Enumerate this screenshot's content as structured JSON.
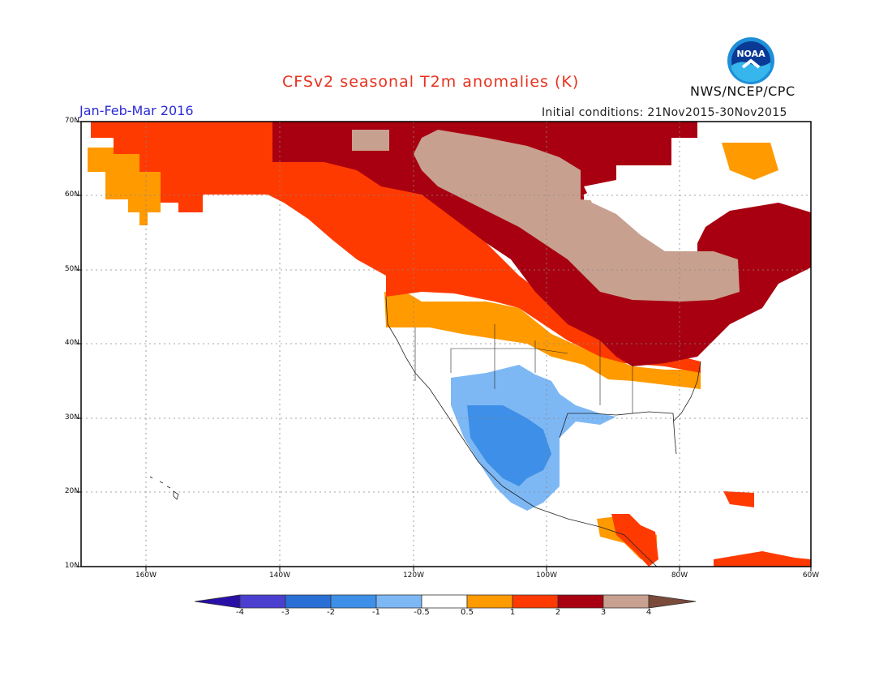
{
  "header": {
    "title": "CFSv2 seasonal T2m anomalies (K)",
    "period": "Jan-Feb-Mar 2016",
    "initial_conditions": "Initial conditions: 21Nov2015-30Nov2015",
    "agency": "NWS/NCEP/CPC",
    "logo_text": "NOAA"
  },
  "map": {
    "lat_labels": [
      "70N",
      "60N",
      "50N",
      "40N",
      "30N",
      "20N",
      "10N"
    ],
    "lon_labels": [
      "160W",
      "140W",
      "120W",
      "100W",
      "80W",
      "60W"
    ]
  },
  "colorbar": {
    "labels": [
      "-4",
      "-3",
      "-2",
      "-1",
      "-0.5",
      "0.5",
      "1",
      "2",
      "3",
      "4"
    ],
    "colors": [
      "#2a0fa6",
      "#4a3fcf",
      "#2a6fd6",
      "#3d8fe8",
      "#7db8f5",
      "#ffffff",
      "#ff9a00",
      "#ff3a00",
      "#a80010",
      "#c8a090",
      "#7a4a3a"
    ]
  }
}
